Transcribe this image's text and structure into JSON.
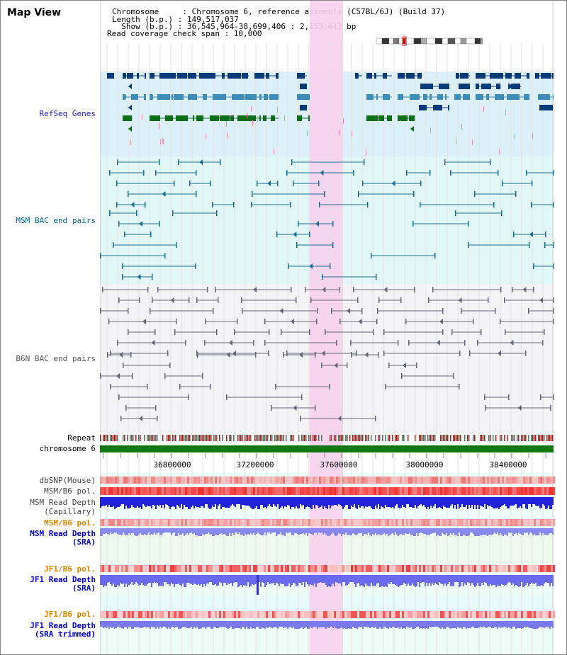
{
  "title": "Map View",
  "info": {
    "chromosome": "Chromosome     : Chromosome 6, reference assembly (C57BL/6J) (Build 37)",
    "length": "Length (b.p.) : 149,517,037",
    "show": "  Show (b.p.) : 36,545,964-38,699,406 : 2,153,443 bp",
    "read_span": "Read coverage check span : 10,000"
  },
  "tracks": {
    "refseq": "RefSeq Genes",
    "msm_bac": "MSM BAC end pairs",
    "b6n_bac": "B6N BAC end pairs",
    "repeat": "Repeat",
    "chromosome": "chromosome 6",
    "dbsnp": "dbSNP(Mouse)",
    "msm_b6_pol": "MSM/B6 pol.",
    "msm_depth_cap_1": "MSM Read Depth",
    "msm_depth_cap_2": "(Capillary)",
    "msm_b6_pol2": "MSM/B6 pol.",
    "msm_depth_sra_1": "MSM Read Depth",
    "msm_depth_sra_2": "(SRA)",
    "jf1_b6_pol": "JF1/B6 pol.",
    "jf1_depth_sra_1": "JF1 Read Depth",
    "jf1_depth_sra_2": "(SRA)",
    "jf1_b6_pol2": "JF1/B6 pol.",
    "jf1_depth_trim_1": "JF1 Read Depth",
    "jf1_depth_trim_2": "(SRA trimmed)"
  },
  "axis": {
    "ticks": [
      "36800000",
      "37200000",
      "37600000",
      "38000000",
      "38400000"
    ]
  },
  "colors": {
    "refseq_label": "#2222cc",
    "msm_label": "#006688",
    "b6n_label": "#555566",
    "black_label": "#000000",
    "orange_label": "#dd8800",
    "blue_label": "#0000cc",
    "highlight": "#f8d0ee",
    "refseq_bg": "#dcf0fa",
    "msm_bg": "#e2f8f8",
    "b6n_bg": "#f4f4f6"
  }
}
